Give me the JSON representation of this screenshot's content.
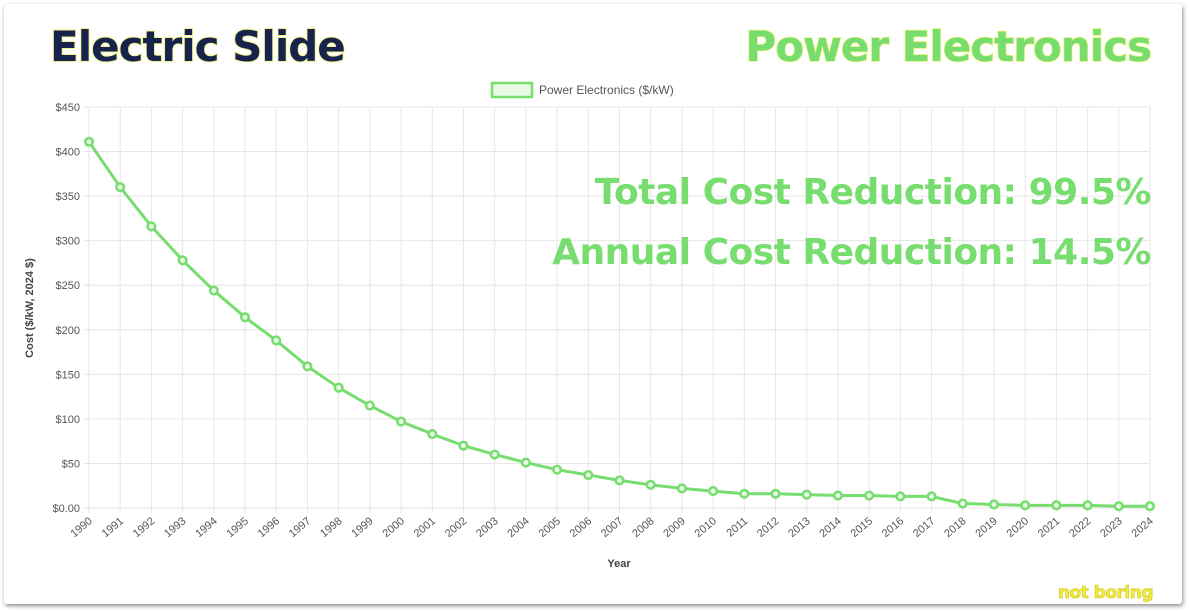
{
  "header": {
    "title_left": "Electric Slide",
    "title_right": "Power Electronics"
  },
  "annotations": {
    "total_reduction": "Total Cost Reduction: 99.5%",
    "annual_reduction": "Annual Cost Reduction: 14.5%"
  },
  "brand": "not boring",
  "colors": {
    "line": "#76dd6e",
    "title_dark": "#17234d",
    "grid": "#e6e6e6"
  },
  "chart_data": {
    "type": "line",
    "xlabel": "Year",
    "ylabel": "Cost ($/kW, 2024 $)",
    "ylim": [
      0,
      450
    ],
    "yticks": [
      0,
      50,
      100,
      150,
      200,
      250,
      300,
      350,
      400,
      450
    ],
    "ytick_labels": [
      "$0.00",
      "$50",
      "$100",
      "$150",
      "$200",
      "$250",
      "$300",
      "$350",
      "$400",
      "$450"
    ],
    "legend_position": "top-center",
    "grid": true,
    "categories": [
      "1990",
      "1991",
      "1992",
      "1993",
      "1994",
      "1995",
      "1996",
      "1997",
      "1998",
      "1999",
      "2000",
      "2001",
      "2002",
      "2003",
      "2004",
      "2005",
      "2006",
      "2007",
      "2008",
      "2009",
      "2010",
      "2011",
      "2012",
      "2013",
      "2014",
      "2015",
      "2016",
      "2017",
      "2018",
      "2019",
      "2020",
      "2021",
      "2022",
      "2023",
      "2024"
    ],
    "series": [
      {
        "name": "Power Electronics ($/kW)",
        "values": [
          411,
          360,
          316,
          278,
          244,
          214,
          188,
          159,
          135,
          115,
          97,
          83,
          70,
          60,
          51,
          43,
          37,
          31,
          26,
          22,
          19,
          16,
          16,
          15,
          14,
          14,
          13,
          13,
          5,
          4,
          3,
          3,
          3,
          2,
          2
        ]
      }
    ]
  }
}
